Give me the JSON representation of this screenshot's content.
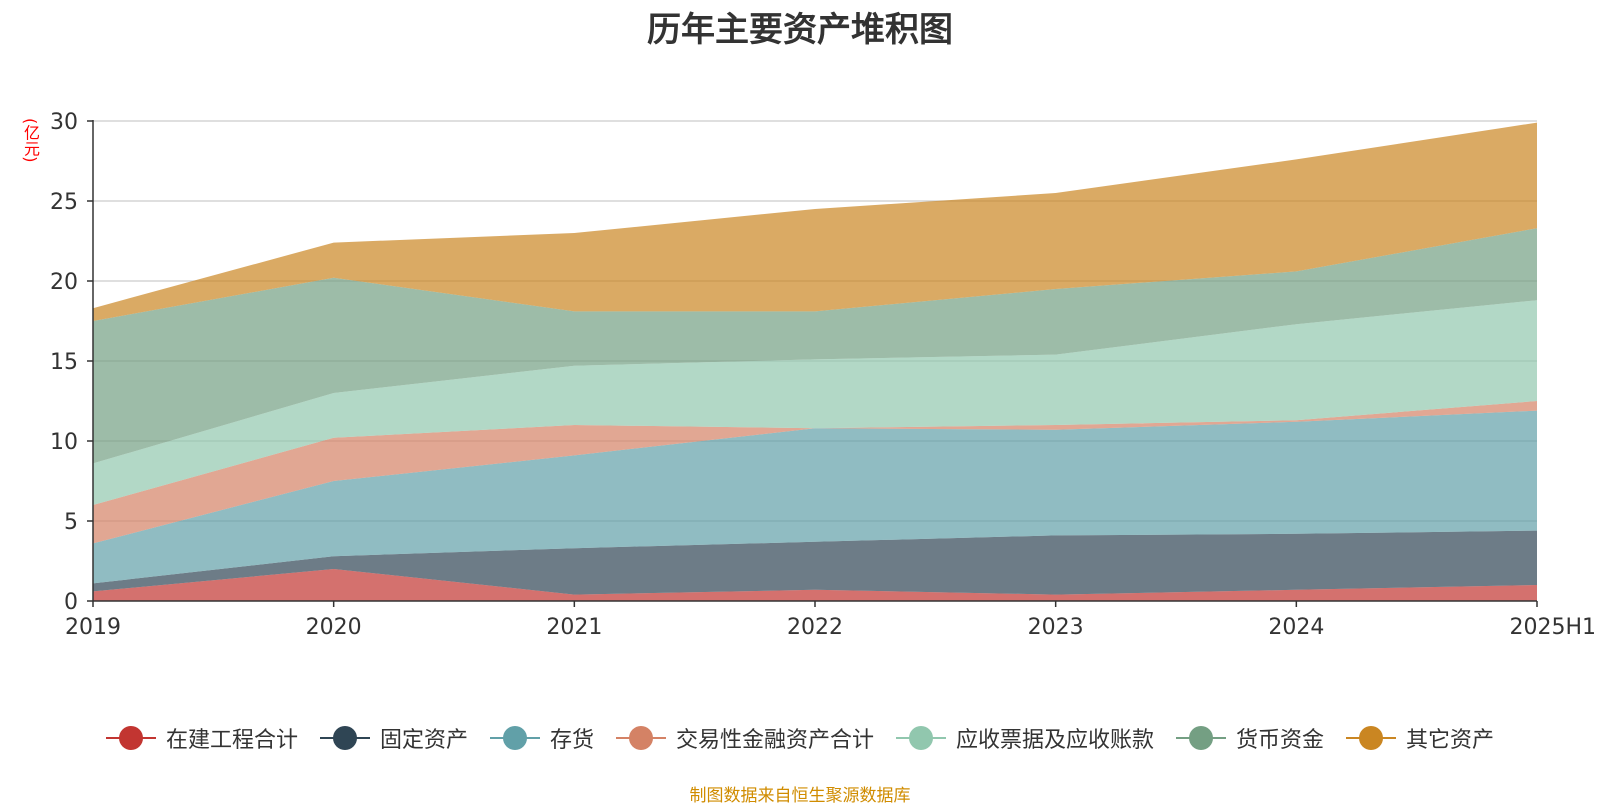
{
  "chart_data": {
    "type": "area",
    "stacked": true,
    "title": "历年主要资产堆积图",
    "unit_label": "(亿元)",
    "categories": [
      "2019",
      "2020",
      "2021",
      "2022",
      "2023",
      "2024",
      "2025H1"
    ],
    "ylim": [
      0,
      30
    ],
    "yticks": [
      0,
      5,
      10,
      15,
      20,
      25,
      30
    ],
    "grid": true,
    "legend_position": "bottom",
    "series": [
      {
        "name": "在建工程合计",
        "color": "#c23531",
        "values": [
          0.6,
          2.0,
          0.4,
          0.7,
          0.4,
          0.7,
          1.0
        ]
      },
      {
        "name": "固定资产",
        "color": "#2f4554",
        "values": [
          0.5,
          0.8,
          2.9,
          3.0,
          3.7,
          3.5,
          3.4
        ]
      },
      {
        "name": "存货",
        "color": "#61a0a8",
        "values": [
          2.5,
          4.7,
          5.8,
          7.1,
          6.6,
          7.0,
          7.5
        ]
      },
      {
        "name": "交易性金融资产合计",
        "color": "#d48265",
        "values": [
          2.4,
          2.7,
          1.9,
          0.0,
          0.3,
          0.1,
          0.6
        ]
      },
      {
        "name": "应收票据及应收账款",
        "color": "#91c7ae",
        "values": [
          2.6,
          2.8,
          3.7,
          4.3,
          4.4,
          6.0,
          6.3
        ]
      },
      {
        "name": "货币资金",
        "color": "#749f83",
        "values": [
          8.9,
          7.2,
          3.4,
          3.0,
          4.1,
          3.3,
          4.5
        ]
      },
      {
        "name": "其它资产",
        "color": "#ca8622",
        "values": [
          0.8,
          2.2,
          4.9,
          6.4,
          6.0,
          7.0,
          6.6
        ]
      }
    ]
  },
  "source": "制图数据来自恒生聚源数据库"
}
